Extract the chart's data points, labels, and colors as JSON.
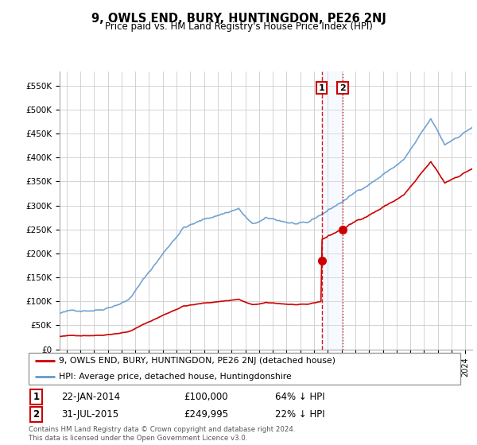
{
  "title": "9, OWLS END, BURY, HUNTINGDON, PE26 2NJ",
  "subtitle": "Price paid vs. HM Land Registry's House Price Index (HPI)",
  "sale1_x": 2014.055,
  "sale1_price": 100000,
  "sale2_x": 2015.578,
  "sale2_price": 249995,
  "hpi_color": "#6699cc",
  "price_color": "#cc0000",
  "vline1_color": "#cc0000",
  "vline2_color": "#cc0000",
  "shade_color": "#ddeeff",
  "grid_color": "#cccccc",
  "background_color": "#ffffff",
  "legend_label_price": "9, OWLS END, BURY, HUNTINGDON, PE26 2NJ (detached house)",
  "legend_label_hpi": "HPI: Average price, detached house, Huntingdonshire",
  "footer": "Contains HM Land Registry data © Crown copyright and database right 2024.\nThis data is licensed under the Open Government Licence v3.0.",
  "ylim": [
    0,
    580000
  ],
  "yticks": [
    0,
    50000,
    100000,
    150000,
    200000,
    250000,
    300000,
    350000,
    400000,
    450000,
    500000,
    550000
  ],
  "ytick_labels": [
    "£0",
    "£50K",
    "£100K",
    "£150K",
    "£200K",
    "£250K",
    "£300K",
    "£350K",
    "£400K",
    "£450K",
    "£500K",
    "£550K"
  ],
  "xmin": 1995.0,
  "xmax": 2025.0,
  "row1_date": "22-JAN-2014",
  "row1_price": "£100,000",
  "row1_pct": "64% ↓ HPI",
  "row2_date": "31-JUL-2015",
  "row2_price": "£249,995",
  "row2_pct": "22% ↓ HPI"
}
